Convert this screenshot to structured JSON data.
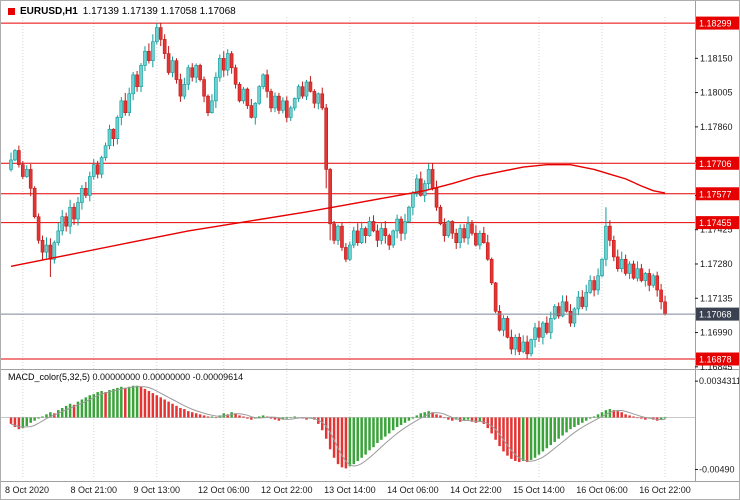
{
  "header": {
    "symbol_period": "EURUSD,H1",
    "ohlc": "1.17139 1.17139 1.17058 1.17068"
  },
  "macd_panel": {
    "label": "MACD_color(5,32,5)",
    "values": "0.00000000 0.00000000 -0.00009614"
  },
  "colors": {
    "up_fill": "#6fd0d0",
    "up_stroke": "#0f9b9b",
    "down_fill": "#e43434",
    "down_stroke": "#bf1a1a",
    "level_line": "#e60000",
    "ma_line": "#e60000",
    "current_line": "#7c8796",
    "current_badge": "#3a4150",
    "badge_text": "#ffffff",
    "grid": "#d4d4d4",
    "axis_text": "#1a1a1a",
    "separator": "#a0a0a0",
    "macd_green": "#3aa33a",
    "macd_red": "#e43434",
    "macd_signal": "#9b9b9b",
    "macd_zero": "#c8c8c8"
  },
  "chart_data": {
    "type": "candlestick",
    "symbol": "EURUSD",
    "timeframe": "H1",
    "indicator": "MACD_color(5,32,5)",
    "main": {
      "ylim": [
        1.1684,
        1.18329
      ],
      "open0": 1.1768,
      "y_ticks": [
        "1.18150",
        "1.18005",
        "1.17860",
        "1.17715",
        "1.17570",
        "1.17425",
        "1.17280",
        "1.17135",
        "1.16990",
        "1.16845"
      ],
      "levels": [
        {
          "price": 1.18299,
          "label": "1.18299"
        },
        {
          "price": 1.17706,
          "label": "1.17706"
        },
        {
          "price": 1.17577,
          "label": "1.17577"
        },
        {
          "price": 1.17455,
          "label": "1.17455"
        },
        {
          "price": 1.16878,
          "label": "1.16878"
        }
      ],
      "current": {
        "price": 1.17068,
        "label": "1.17068"
      },
      "global_high": 1.18299,
      "global_low": 1.16878,
      "closes": [
        1.1772,
        1.1776,
        1.177,
        1.1765,
        1.1768,
        1.176,
        1.1748,
        1.1738,
        1.1733,
        1.1736,
        1.173,
        1.1737,
        1.1742,
        1.1748,
        1.1744,
        1.1752,
        1.1747,
        1.1754,
        1.176,
        1.1757,
        1.1765,
        1.177,
        1.1766,
        1.1773,
        1.1778,
        1.1785,
        1.1781,
        1.179,
        1.1797,
        1.1792,
        1.18,
        1.1808,
        1.1803,
        1.1812,
        1.1818,
        1.1814,
        1.1822,
        1.1828,
        1.1823,
        1.1817,
        1.1809,
        1.1814,
        1.1806,
        1.1799,
        1.1804,
        1.1811,
        1.1807,
        1.1812,
        1.1806,
        1.1799,
        1.1792,
        1.1797,
        1.1807,
        1.1815,
        1.181,
        1.1817,
        1.1811,
        1.1804,
        1.1797,
        1.1802,
        1.1795,
        1.179,
        1.1796,
        1.1803,
        1.1808,
        1.1801,
        1.1794,
        1.1799,
        1.1793,
        1.1797,
        1.179,
        1.1794,
        1.1798,
        1.1803,
        1.1799,
        1.1805,
        1.1801,
        1.1796,
        1.18,
        1.1794,
        1.1768,
        1.1745,
        1.1738,
        1.1744,
        1.1735,
        1.173,
        1.1736,
        1.1742,
        1.1737,
        1.1743,
        1.174,
        1.1746,
        1.1742,
        1.1738,
        1.1743,
        1.174,
        1.1736,
        1.1742,
        1.1747,
        1.1741,
        1.1746,
        1.1752,
        1.1758,
        1.1764,
        1.1757,
        1.1762,
        1.1768,
        1.176,
        1.1752,
        1.1745,
        1.174,
        1.1746,
        1.1741,
        1.1737,
        1.1743,
        1.1739,
        1.1745,
        1.1741,
        1.1736,
        1.1741,
        1.1737,
        1.173,
        1.172,
        1.1708,
        1.17,
        1.1705,
        1.1697,
        1.1692,
        1.1697,
        1.1691,
        1.1695,
        1.169,
        1.1696,
        1.1701,
        1.1697,
        1.1703,
        1.1699,
        1.1705,
        1.171,
        1.1706,
        1.1712,
        1.1708,
        1.1703,
        1.1709,
        1.1714,
        1.171,
        1.1716,
        1.1721,
        1.1717,
        1.1723,
        1.173,
        1.1744,
        1.1738,
        1.1731,
        1.1726,
        1.173,
        1.1724,
        1.1728,
        1.1722,
        1.1726,
        1.1721,
        1.1724,
        1.1719,
        1.1723,
        1.1717,
        1.1712,
        1.17068
      ],
      "wick_overrides": {
        "10": {
          "l": 1.17225
        },
        "37": {
          "h": 1.18299
        },
        "80": {
          "l": 1.176
        },
        "81": {
          "l": 1.1738
        },
        "106": {
          "h": 1.17705
        },
        "129": {
          "l": 1.16895
        },
        "131": {
          "l": 1.16878
        },
        "151": {
          "h": 1.1752
        }
      },
      "ma_points": [
        [
          0,
          1.1727
        ],
        [
          15,
          1.1732
        ],
        [
          30,
          1.1737
        ],
        [
          45,
          1.1742
        ],
        [
          60,
          1.1746
        ],
        [
          75,
          1.175
        ],
        [
          85,
          1.1753
        ],
        [
          95,
          1.1756
        ],
        [
          105,
          1.1759
        ],
        [
          112,
          1.1762
        ],
        [
          118,
          1.1765
        ],
        [
          124,
          1.1767
        ],
        [
          130,
          1.1769
        ],
        [
          136,
          1.177
        ],
        [
          142,
          1.177
        ],
        [
          148,
          1.1768
        ],
        [
          152,
          1.1766
        ],
        [
          156,
          1.1764
        ],
        [
          160,
          1.1761
        ],
        [
          163,
          1.1759
        ],
        [
          166,
          1.1758
        ]
      ]
    },
    "macd": {
      "ylim": [
        -0.0058,
        0.0042
      ],
      "axis_labels": [
        "0.0034311",
        "-0.00490"
      ],
      "values": [
        -0.0006,
        -0.0009,
        -0.0011,
        -0.001,
        -0.0008,
        -0.0005,
        -0.0003,
        -0.0001,
        0.0001,
        0.0003,
        0.0005,
        0.0004,
        0.0007,
        0.0009,
        0.0011,
        0.0013,
        0.0012,
        0.0015,
        0.0017,
        0.0019,
        0.0021,
        0.0022,
        0.0024,
        0.0025,
        0.0024,
        0.0026,
        0.0027,
        0.0028,
        0.0029,
        0.0028,
        0.0029,
        0.003,
        0.003,
        0.0029,
        0.0027,
        0.0025,
        0.0023,
        0.0021,
        0.0019,
        0.0017,
        0.0015,
        0.0013,
        0.0011,
        0.0009,
        0.0008,
        0.0006,
        0.0005,
        0.0004,
        0.0003,
        0.0002,
        0.0001,
        0.0001,
        0.0,
        0.0002,
        0.0004,
        0.0003,
        0.0005,
        0.0004,
        0.0002,
        0.0001,
        -0.0001,
        -0.0002,
        -0.0001,
        0.0001,
        0.0002,
        0.0001,
        -0.0001,
        -0.0002,
        -0.0003,
        -0.0002,
        -0.0001,
        0.0,
        0.0001,
        0.0,
        -0.0001,
        -0.0002,
        -0.0001,
        -0.0002,
        -0.0006,
        -0.0012,
        -0.002,
        -0.003,
        -0.0038,
        -0.0044,
        -0.0047,
        -0.0048,
        -0.0046,
        -0.0044,
        -0.0041,
        -0.0038,
        -0.0035,
        -0.0031,
        -0.0028,
        -0.0024,
        -0.0021,
        -0.0018,
        -0.0015,
        -0.0012,
        -0.0009,
        -0.0007,
        -0.0005,
        -0.0003,
        -0.0001,
        0.0002,
        0.0004,
        0.0005,
        0.0006,
        0.0005,
        0.0003,
        0.0002,
        0.0,
        -0.0002,
        -0.0003,
        -0.0002,
        -0.0004,
        -0.0003,
        -0.0002,
        -0.0004,
        -0.0005,
        -0.0004,
        -0.0006,
        -0.001,
        -0.0015,
        -0.0021,
        -0.0027,
        -0.0032,
        -0.0036,
        -0.0039,
        -0.0041,
        -0.0042,
        -0.0041,
        -0.0042,
        -0.004,
        -0.0038,
        -0.0035,
        -0.0032,
        -0.0029,
        -0.0026,
        -0.0023,
        -0.002,
        -0.0017,
        -0.0014,
        -0.0011,
        -0.0009,
        -0.0007,
        -0.0005,
        -0.0003,
        -0.0001,
        0.0001,
        0.0003,
        0.0005,
        0.0007,
        0.0008,
        0.0007,
        0.0006,
        0.0005,
        0.0003,
        0.0002,
        0.0001,
        0.0,
        -0.0001,
        -0.0002,
        -0.0001,
        -0.0002,
        -0.0003,
        -0.0002,
        -9.6e-05
      ]
    },
    "x_labels": [
      {
        "label": "8 Oct 2020",
        "i": 3
      },
      {
        "label": "8 Oct 21:00",
        "i": 21
      },
      {
        "label": "9 Oct 13:00",
        "i": 37
      },
      {
        "label": "12 Oct 06:00",
        "i": 54
      },
      {
        "label": "12 Oct 22:00",
        "i": 70
      },
      {
        "label": "13 Oct 14:00",
        "i": 86
      },
      {
        "label": "14 Oct 06:00",
        "i": 102
      },
      {
        "label": "14 Oct 22:00",
        "i": 118
      },
      {
        "label": "15 Oct 14:00",
        "i": 134
      },
      {
        "label": "16 Oct 06:00",
        "i": 150
      },
      {
        "label": "16 Oct 22:00",
        "i": 166
      }
    ]
  }
}
